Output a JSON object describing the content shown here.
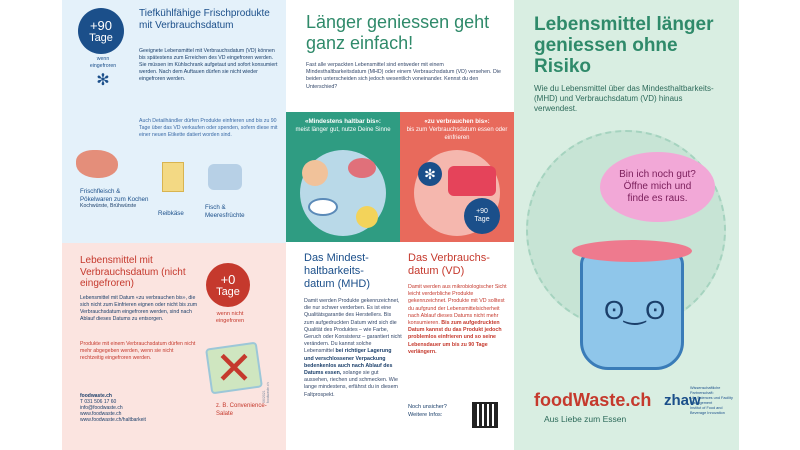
{
  "left_top": {
    "badge": {
      "amount": "+90",
      "unit": "Tage",
      "note": "wenn\neingefroren"
    },
    "title": "Tiefkühlfähige Frischprodukte mit Verbrauchsdatum",
    "body": "Geeignete Lebensmittel mit Verbrauchsdatum (VD) können bis spätestens zum Erreichen des VD eingefroren werden. Sie müssen im Kühlschrank aufgetaut und sofort konsumiert werden. Nach dem Auftauen dürfen sie nicht wieder eingefroren werden.",
    "note": "Auch Detailhändler dürfen Produkte einfrieren und bis zu 90 Tage über das VD verkaufen oder spenden, sofern diese mit einer neuen Etikette datiert worden sind.",
    "items": [
      {
        "label": "Frischfleisch & Pökelwaren zum Kochen",
        "sub": "Kochwürste, Brühwürste"
      },
      {
        "label": "Reibkäse",
        "sub": ""
      },
      {
        "label": "Fisch & Meeresfrüchte",
        "sub": ""
      }
    ]
  },
  "left_bot": {
    "title": "Lebensmittel mit Verbrauchsdatum (nicht eingefroren)",
    "badge": {
      "amount": "+0",
      "unit": "Tage",
      "note": "wenn nicht eingefroren"
    },
    "body": "Lebensmittel mit Datum «zu verbrauchen bis», die sich nicht zum Einfrieren eignen oder nicht bis zum Verbrauchsdatum eingefroren werden, sind nach Ablauf dieses Datums zu entsorgen.",
    "note": "Produkte mit einem Verbrauchsdatum dürfen nicht mehr abgegeben werden, wenn sie nicht rechtzeitig eingefroren werden.",
    "contact": [
      "foodwaste.ch",
      "T 031 506 17 60",
      "info@foodwaste.ch",
      "www.foodwaste.ch",
      "www.foodwaste.ch/haltbarkeit"
    ],
    "item": "z. B. Convenience-Salate",
    "code": "06/2021  foodwaste.ch"
  },
  "mid": {
    "title": "Länger geniessen geht ganz einfach!",
    "intro": "Fast alle verpackten Lebensmittel sind entweder mit einem Mindesthaltbarkeitsdatum (MHD) oder einem Verbrauchsdatum (VD) versehen. Die beiden unterscheiden sich jedoch wesentlich voneinander. Kennst du den Unterschied?",
    "card_mhd": {
      "title": "«Mindestens haltbar bis»:",
      "sub": "meist länger gut, nutze Deine Sinne"
    },
    "card_vd": {
      "title": "«zu verbrauchen bis»:",
      "sub": "bis zum Verbrauchsdatum essen oder einfrieren",
      "badge": "+90\nTage"
    },
    "mhd_title": "Das Mindest-haltbarkeits-datum (MHD)",
    "mhd_body": "Damit werden Produkte gekennzeichnet, die nur schwer verderben. Es ist eine Qualitätsgarantie des Herstellers. Bis zum aufgedruckten Datum wird sich die Qualität des Produktes – wie Farbe, Geruch oder Konsistenz – garantiert nicht verändern. Du kannst solche Lebensmittel",
    "mhd_bold": "bei richtiger Lagerung und verschlossener Verpackung bedenkenlos auch nach Ablauf des Datums essen,",
    "mhd_end": "solange sie gut aussehen, riechen und schmecken. Wie lange mindestens, erfährst du in diesem Faltprospekt.",
    "vd_title": "Das Verbrauchs-datum (VD)",
    "vd_body": "Damit werden aus mikrobiologischer Sicht leicht verderbliche Produkte gekennzeichnet. Produkte mit VD solltest du aufgrund der Lebensmittelsicherheit nach Ablauf dieses Datums nicht mehr konsumieren.",
    "vd_bold": "Bis zum aufgedruckten Datum kannst du das Produkt jedoch problemlos einfrieren und so seine Lebensdauer um bis zu 90 Tage verlängern.",
    "footer": "Noch unsicher?\nWeitere Infos:"
  },
  "right": {
    "title": "Lebensmittel länger geniessen ohne Risiko",
    "sub": "Wie du Lebensmittel über das Mindesthaltbarkeits- (MHD) und Verbrauchsdatum (VD) hinaus verwendest.",
    "bubble": "Bin ich noch gut?\nÖffne mich und\nfinde es raus.",
    "brand": "foodWaste.ch",
    "tagline": "Aus Liebe zum Essen",
    "zhaw": "zhaw",
    "zhaw_text": "Wissenschaftliche Partnerschaft:\nLife Sciences und Facility Management\nInstitut of Food and Beverage Innovation"
  },
  "colors": {
    "blue": "#1b4f8a",
    "red": "#c5392d",
    "green": "#2f8a6a",
    "pink": "#f2a8d7"
  }
}
